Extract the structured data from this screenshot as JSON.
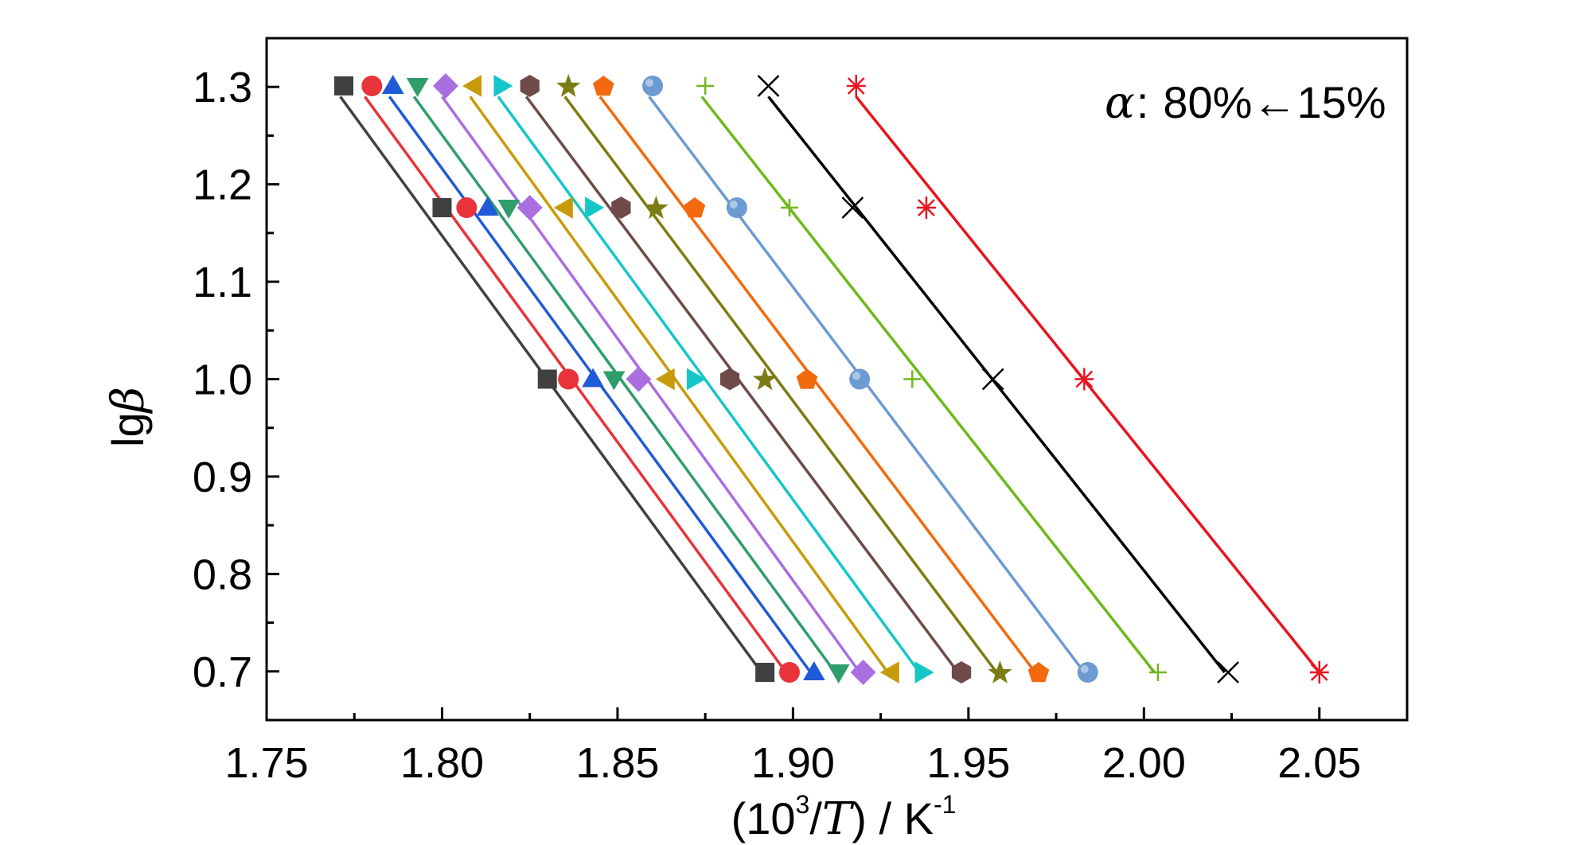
{
  "chart_data": {
    "type": "scatter",
    "title": "",
    "xlabel": {
      "pre": "(10",
      "sup": "3",
      "mid": "/",
      "var": "T",
      "post": ") / K",
      "unit_sup": "-1"
    },
    "ylabel": {
      "pre": "lg",
      "var": "β"
    },
    "xlim": [
      1.75,
      2.075
    ],
    "ylim": [
      0.65,
      1.35
    ],
    "x_ticks": [
      "1.75",
      "1.80",
      "1.85",
      "1.90",
      "1.95",
      "2.00",
      "2.05"
    ],
    "y_ticks": [
      "0.7",
      "0.8",
      "0.9",
      "1.0",
      "1.1",
      "1.2",
      "1.3"
    ],
    "grid": false,
    "legend": "none",
    "annotation": {
      "symbol": "α",
      "text": "80%←15%"
    },
    "y": [
      1.301,
      1.176,
      1.0,
      0.699
    ],
    "series": [
      {
        "marker": "square",
        "color": "#404040",
        "x": [
          1.772,
          1.8,
          1.83,
          1.892
        ],
        "fit": [
          [
            1.771,
            1.29
          ],
          [
            1.891,
            0.699
          ]
        ]
      },
      {
        "marker": "circle",
        "color": "#e8333a",
        "x": [
          1.78,
          1.807,
          1.836,
          1.899
        ],
        "fit": [
          [
            1.778,
            1.29
          ],
          [
            1.898,
            0.699
          ]
        ]
      },
      {
        "marker": "triangle-up",
        "color": "#1f5bd6",
        "x": [
          1.786,
          1.813,
          1.843,
          1.906
        ],
        "fit": [
          [
            1.785,
            1.29
          ],
          [
            1.905,
            0.699
          ]
        ]
      },
      {
        "marker": "triangle-down",
        "color": "#2e9e6b",
        "x": [
          1.793,
          1.819,
          1.849,
          1.913
        ],
        "fit": [
          [
            1.792,
            1.29
          ],
          [
            1.912,
            0.699
          ]
        ]
      },
      {
        "marker": "diamond",
        "color": "#a96ee0",
        "x": [
          1.801,
          1.825,
          1.856,
          1.92
        ],
        "fit": [
          [
            1.8,
            1.29
          ],
          [
            1.919,
            0.699
          ]
        ]
      },
      {
        "marker": "triangle-left",
        "color": "#c89b0a",
        "x": [
          1.809,
          1.835,
          1.864,
          1.928
        ],
        "fit": [
          [
            1.808,
            1.29
          ],
          [
            1.927,
            0.699
          ]
        ]
      },
      {
        "marker": "triangle-right",
        "color": "#15c6c8",
        "x": [
          1.817,
          1.843,
          1.872,
          1.937
        ],
        "fit": [
          [
            1.816,
            1.29
          ],
          [
            1.936,
            0.699
          ]
        ]
      },
      {
        "marker": "hexagon",
        "color": "#6e4a48",
        "x": [
          1.825,
          1.851,
          1.882,
          1.948
        ],
        "fit": [
          [
            1.824,
            1.29
          ],
          [
            1.947,
            0.699
          ]
        ]
      },
      {
        "marker": "star",
        "color": "#7c7c14",
        "x": [
          1.836,
          1.861,
          1.892,
          1.959
        ],
        "fit": [
          [
            1.835,
            1.29
          ],
          [
            1.958,
            0.699
          ]
        ]
      },
      {
        "marker": "pentagon",
        "color": "#f26a0d",
        "x": [
          1.846,
          1.872,
          1.904,
          1.97
        ],
        "fit": [
          [
            1.845,
            1.29
          ],
          [
            1.969,
            0.699
          ]
        ]
      },
      {
        "marker": "sphere",
        "color": "#6b9bd0",
        "x": [
          1.86,
          1.884,
          1.919,
          1.984
        ],
        "fit": [
          [
            1.859,
            1.29
          ],
          [
            1.983,
            0.699
          ]
        ]
      },
      {
        "marker": "plus",
        "color": "#6fb81c",
        "x": [
          1.875,
          1.899,
          1.934,
          2.004
        ],
        "fit": [
          [
            1.874,
            1.29
          ],
          [
            2.003,
            0.699
          ]
        ]
      },
      {
        "marker": "x",
        "color": "#000000",
        "x": [
          1.893,
          1.917,
          1.957,
          2.024
        ],
        "fit": [
          [
            1.893,
            1.29
          ],
          [
            2.023,
            0.699
          ]
        ]
      },
      {
        "marker": "asterisk",
        "color": "#e8141f",
        "x": [
          1.918,
          1.938,
          1.983,
          2.05
        ],
        "fit": [
          [
            1.918,
            1.29
          ],
          [
            2.05,
            0.699
          ]
        ]
      }
    ]
  }
}
